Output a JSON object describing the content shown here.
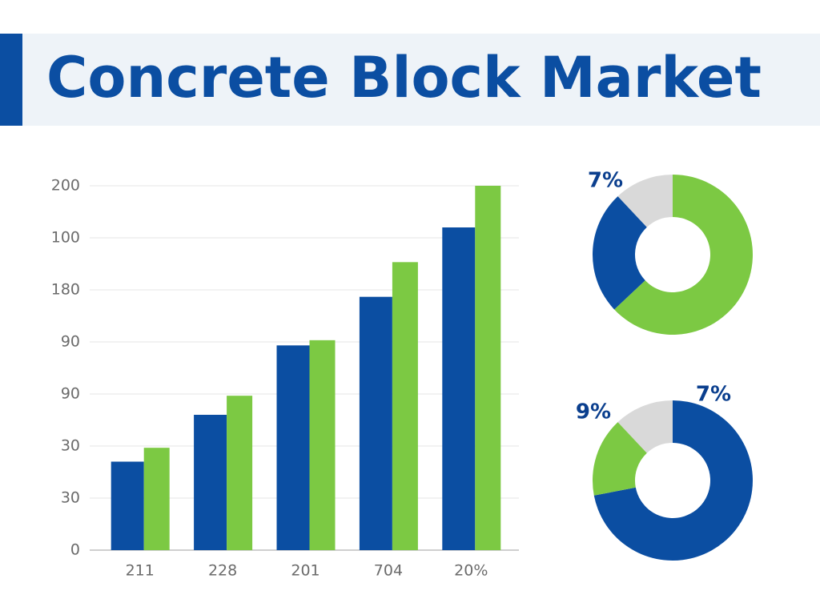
{
  "chart_data": [
    {
      "type": "bar",
      "title": "Concrete Block Market",
      "categories": [
        "211",
        "228",
        "201",
        "704",
        "20%"
      ],
      "series": [
        {
          "color": "#0b4ea2",
          "values": [
            51,
            78,
            118,
            146,
            186
          ]
        },
        {
          "color": "#7cc943",
          "values": [
            59,
            89,
            121,
            166,
            210
          ]
        }
      ],
      "ylim": [
        0,
        210
      ],
      "yticks": [
        0,
        30,
        {
          "value": 60,
          "label": "30"
        },
        90,
        {
          "value": 120,
          "label": "90"
        },
        {
          "value": 150,
          "label": "180"
        },
        {
          "value": 180,
          "label": "100"
        },
        {
          "value": 210,
          "label": "200"
        }
      ],
      "grid": true
    },
    {
      "type": "pie",
      "hole": true,
      "values": [
        63,
        25,
        12
      ],
      "colors": [
        "#7cc943",
        "#0b4ea2",
        "#d9d9d9"
      ],
      "annotations": [
        "7%"
      ]
    },
    {
      "type": "pie",
      "hole": true,
      "values": [
        72,
        16,
        12
      ],
      "colors": [
        "#0b4ea2",
        "#7cc943",
        "#d9d9d9"
      ],
      "annotations": [
        "9%",
        "7%"
      ]
    }
  ]
}
